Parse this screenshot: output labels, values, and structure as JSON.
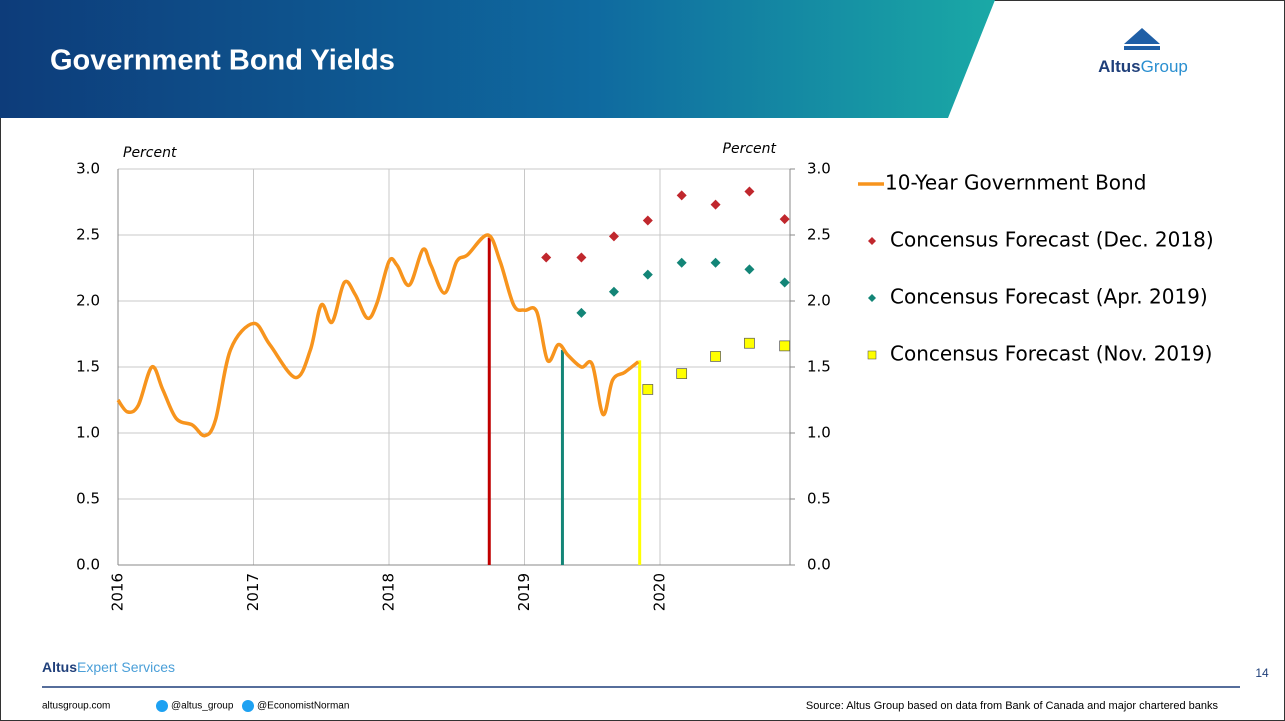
{
  "header": {
    "title": "Government Bond Yields",
    "logo": [
      "Altus",
      "Group"
    ]
  },
  "chart_data": {
    "type": "line",
    "ylabel": "Percent",
    "y2label": "Percent",
    "xlim": [
      2016,
      2021
    ],
    "xticks": [
      2016,
      2017,
      2018,
      2019,
      2020
    ],
    "ylim": [
      0,
      3
    ],
    "yticks": [
      {
        "value": 0,
        "label": "0.0"
      },
      {
        "value": 0.5,
        "label": "0.5"
      },
      {
        "value": 1,
        "label": "1.0"
      },
      {
        "value": 1.5,
        "label": "1.5"
      },
      {
        "value": 2,
        "label": "2.0"
      },
      {
        "value": 2.5,
        "label": "2.5"
      },
      {
        "value": 3,
        "label": "3.0"
      }
    ],
    "y2lim": [
      0,
      3
    ],
    "y2ticks": [
      {
        "value": 0,
        "label": "0.0"
      },
      {
        "value": 0.5,
        "label": "0.5"
      },
      {
        "value": 1,
        "label": "1.0"
      },
      {
        "value": 1.5,
        "label": "1.5"
      },
      {
        "value": 2,
        "label": "2.0"
      },
      {
        "value": 2.5,
        "label": "2.5"
      },
      {
        "value": 3,
        "label": "3.0"
      }
    ],
    "grid": true,
    "series": [
      {
        "name": "10-Year Government Bond",
        "color": "#f7941d",
        "style": "line",
        "x": [
          2016.0,
          2016.07,
          2016.15,
          2016.25,
          2016.33,
          2016.43,
          2016.55,
          2016.64,
          2016.72,
          2016.83,
          2017.0,
          2017.12,
          2017.31,
          2017.42,
          2017.5,
          2017.58,
          2017.67,
          2017.75,
          2017.84,
          2017.91,
          2018.0,
          2018.06,
          2018.15,
          2018.25,
          2018.31,
          2018.41,
          2018.5,
          2018.58,
          2018.73,
          2018.82,
          2018.92,
          2019.0,
          2019.09,
          2019.17,
          2019.25,
          2019.32,
          2019.42,
          2019.5,
          2019.58,
          2019.65,
          2019.74,
          2019.84
        ],
        "values": [
          1.25,
          1.16,
          1.21,
          1.5,
          1.33,
          1.11,
          1.06,
          0.98,
          1.1,
          1.63,
          1.83,
          1.67,
          1.42,
          1.63,
          1.97,
          1.84,
          2.14,
          2.05,
          1.87,
          1.98,
          2.3,
          2.27,
          2.12,
          2.39,
          2.27,
          2.06,
          2.3,
          2.35,
          2.5,
          2.3,
          1.97,
          1.93,
          1.92,
          1.55,
          1.67,
          1.59,
          1.5,
          1.52,
          1.14,
          1.4,
          1.46,
          1.54
        ]
      },
      {
        "name": "Concensus Forecast (Dec. 2018)",
        "color": "#c0272d",
        "style": "diamond",
        "x": [
          2019.16,
          2019.42,
          2019.66,
          2019.91,
          2020.16,
          2020.41,
          2020.66,
          2020.92
        ],
        "values": [
          2.33,
          2.33,
          2.49,
          2.61,
          2.8,
          2.73,
          2.83,
          2.62
        ]
      },
      {
        "name": "Concensus Forecast (Apr. 2019)",
        "color": "#138577",
        "style": "diamond",
        "x": [
          2019.42,
          2019.66,
          2019.91,
          2020.16,
          2020.41,
          2020.66,
          2020.92
        ],
        "values": [
          1.91,
          2.07,
          2.2,
          2.29,
          2.29,
          2.24,
          2.14
        ]
      },
      {
        "name": "Concensus Forecast (Nov. 2019)",
        "color": "#ffff00",
        "style": "square",
        "x": [
          2019.91,
          2020.16,
          2020.41,
          2020.66,
          2020.92
        ],
        "values": [
          1.33,
          1.45,
          1.58,
          1.68,
          1.66
        ]
      }
    ],
    "vlines": [
      {
        "x": 2018.74,
        "value": 2.48,
        "color": "#c00000"
      },
      {
        "x": 2019.28,
        "value": 1.63,
        "color": "#138577"
      },
      {
        "x": 2019.85,
        "value": 1.55,
        "color": "#ffff00"
      }
    ]
  },
  "footer": {
    "brand": [
      "Altus",
      "Expert Services"
    ],
    "website": "altusgroup.com",
    "twitter1": "@altus_group",
    "twitter2": "@EconomistNorman",
    "source": "Source: Altus Group based on data from Bank of Canada and major chartered banks",
    "page": "14"
  }
}
